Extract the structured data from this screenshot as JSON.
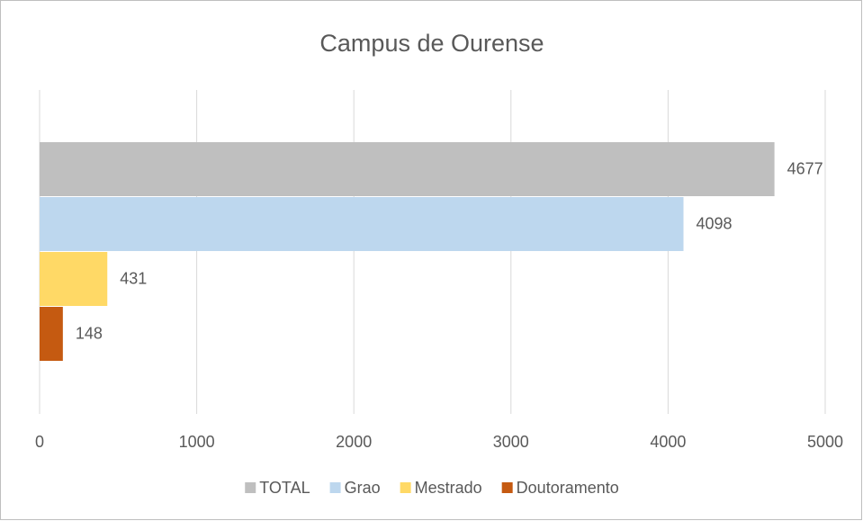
{
  "chart_data": {
    "type": "bar",
    "orientation": "horizontal",
    "title": "Campus de Ourense",
    "categories": [
      null
    ],
    "series": [
      {
        "name": "TOTAL",
        "color": "#bfbfbf",
        "values": [
          4677
        ]
      },
      {
        "name": "Grao",
        "color": "#bdd7ee",
        "values": [
          4098
        ]
      },
      {
        "name": "Mestrado",
        "color": "#ffd966",
        "values": [
          431
        ]
      },
      {
        "name": "Doutoramento",
        "color": "#c55a11",
        "values": [
          148
        ]
      }
    ],
    "xlim": [
      0,
      5000
    ],
    "xticks": [
      0,
      1000,
      2000,
      3000,
      4000,
      5000
    ],
    "grid": true,
    "legend": "bottom"
  }
}
